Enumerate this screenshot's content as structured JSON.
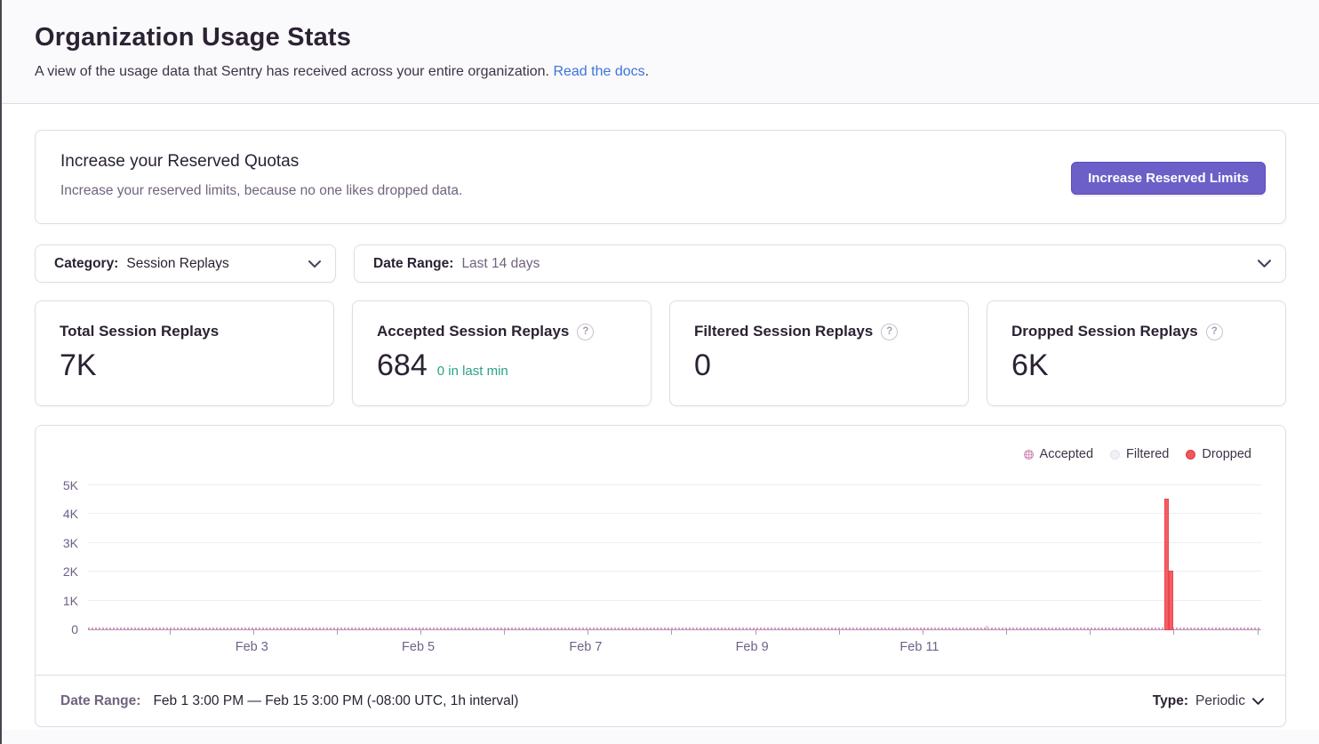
{
  "page": {
    "title": "Organization Usage Stats",
    "subtitle": "A view of the usage data that Sentry has received across your entire organization.",
    "subtitle_link": "Read the docs",
    "subtitle_suffix": "."
  },
  "quota_banner": {
    "title": "Increase your Reserved Quotas",
    "description": "Increase your reserved limits, because no one likes dropped data.",
    "button_label": "Increase Reserved Limits"
  },
  "filters": {
    "category": {
      "label": "Category:",
      "value": "Session Replays"
    },
    "date_range": {
      "label": "Date Range:",
      "value": "Last 14 days"
    }
  },
  "stat_cards": [
    {
      "title": "Total Session Replays",
      "value": "7K",
      "note": "",
      "has_help": false
    },
    {
      "title": "Accepted Session Replays",
      "value": "684",
      "note": "0 in last min",
      "has_help": true
    },
    {
      "title": "Filtered Session Replays",
      "value": "0",
      "note": "",
      "has_help": true
    },
    {
      "title": "Dropped Session Replays",
      "value": "6K",
      "note": "",
      "has_help": true
    }
  ],
  "help_icon_glyph": "?",
  "chart_data": {
    "type": "bar",
    "title": "",
    "xlabel": "",
    "ylabel": "",
    "ylim": [
      0,
      5000
    ],
    "grid": true,
    "legend_position": "top-right",
    "legend": [
      {
        "label": "Accepted",
        "key": "accepted",
        "color": "#D06CA8"
      },
      {
        "label": "Filtered",
        "key": "filtered",
        "color": "#F2EFF5"
      },
      {
        "label": "Dropped",
        "key": "dropped",
        "color": "#F55459"
      }
    ],
    "yticks": [
      {
        "label": "0",
        "value": 0
      },
      {
        "label": "1K",
        "value": 1000
      },
      {
        "label": "2K",
        "value": 2000
      },
      {
        "label": "3K",
        "value": 3000
      },
      {
        "label": "4K",
        "value": 4000
      },
      {
        "label": "5K",
        "value": 5000
      }
    ],
    "xlabels": [
      {
        "label": "Feb 3",
        "pos": 0.1396
      },
      {
        "label": "Feb 5",
        "pos": 0.2815
      },
      {
        "label": "Feb 7",
        "pos": 0.4242
      },
      {
        "label": "Feb 9",
        "pos": 0.566
      },
      {
        "label": "Feb 11",
        "pos": 0.7087
      }
    ],
    "tick_positions": [
      0.0694,
      0.1407,
      0.212,
      0.2834,
      0.3547,
      0.426,
      0.4973,
      0.5687,
      0.64,
      0.7113,
      0.7827,
      0.854,
      0.9253,
      0.9966
    ],
    "x_range": "Feb 1 3:00 PM — Feb 15 3:00 PM (hourly buckets)",
    "series": [
      {
        "name": "Dropped",
        "key": "dropped",
        "color": "#F55459",
        "points": [
          {
            "x": "Feb 14 ~12:00",
            "pos": 0.9196,
            "value": 4500
          },
          {
            "x": "Feb 14 ~13:00",
            "pos": 0.923,
            "value": 2000
          }
        ]
      },
      {
        "name": "Accepted",
        "key": "accepted",
        "color": "#D06CA8",
        "points": [
          {
            "x": "Feb 12 ~04:00",
            "pos": 0.766,
            "value": 120
          },
          {
            "x": "Feb 14 ~12:00",
            "pos": 0.9196,
            "value": 250
          }
        ],
        "note": "remaining accepted events (684 total) appear as tiny dotted hourly bars along the 0 baseline"
      },
      {
        "name": "Filtered",
        "key": "filtered",
        "color": "#F2EFF5",
        "points": []
      }
    ]
  },
  "chart_footer": {
    "date_range_label": "Date Range:",
    "date_range_value": "Feb 1 3:00 PM — Feb 15 3:00 PM (-08:00 UTC, 1h interval)",
    "type_label": "Type:",
    "type_value": "Periodic"
  },
  "colors": {
    "accent_purple": "#6C5FC7",
    "link_blue": "#3C74DD",
    "dropped_red": "#F55459",
    "accepted_pink": "#D06CA8",
    "filtered_gray": "#F2EFF5",
    "note_green": "#2BA185",
    "header_bg": "#FAF9FB",
    "border": "#E0DCE5"
  }
}
